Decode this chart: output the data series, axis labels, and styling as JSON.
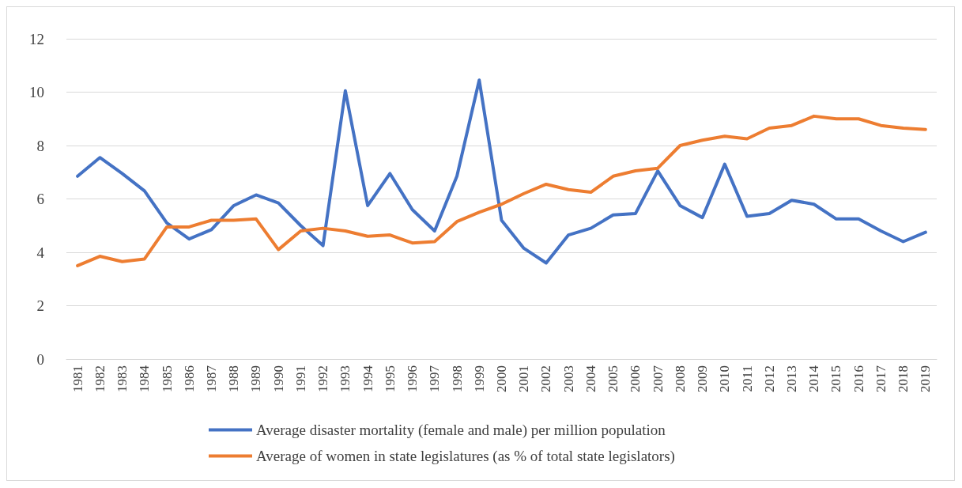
{
  "chart_data": {
    "type": "line",
    "categories": [
      "1981",
      "1982",
      "1983",
      "1984",
      "1985",
      "1986",
      "1987",
      "1988",
      "1989",
      "1990",
      "1991",
      "1992",
      "1993",
      "1994",
      "1995",
      "1996",
      "1997",
      "1998",
      "1999",
      "2000",
      "2001",
      "2002",
      "2003",
      "2004",
      "2005",
      "2006",
      "2007",
      "2008",
      "2009",
      "2010",
      "2011",
      "2012",
      "2013",
      "2014",
      "2015",
      "2016",
      "2017",
      "2018",
      "2019"
    ],
    "series": [
      {
        "name": "Average disaster mortality (female and male) per million population",
        "color": "#4472c4",
        "values": [
          6.85,
          7.55,
          6.95,
          6.3,
          5.1,
          4.5,
          4.85,
          5.75,
          6.15,
          5.85,
          5.0,
          4.25,
          10.05,
          5.75,
          6.95,
          5.6,
          4.8,
          6.85,
          10.45,
          5.2,
          4.15,
          3.6,
          4.65,
          4.9,
          5.4,
          5.45,
          7.05,
          5.75,
          5.3,
          7.3,
          5.35,
          5.45,
          5.95,
          5.8,
          5.25,
          5.25,
          4.8,
          4.4,
          4.75
        ]
      },
      {
        "name": "Average of women in state legislatures (as % of total state legislators)",
        "color": "#ed7d31",
        "values": [
          3.5,
          3.85,
          3.65,
          3.75,
          4.95,
          4.95,
          5.2,
          5.2,
          5.25,
          4.1,
          4.8,
          4.9,
          4.8,
          4.6,
          4.65,
          4.35,
          4.4,
          5.15,
          5.5,
          5.8,
          6.2,
          6.55,
          6.35,
          6.25,
          6.85,
          7.05,
          7.15,
          8.0,
          8.2,
          8.35,
          8.25,
          8.65,
          8.75,
          9.1,
          9.0,
          9.0,
          8.75,
          8.65,
          8.6
        ]
      }
    ],
    "ylim": [
      0,
      12
    ],
    "yticks": [
      0,
      2,
      4,
      6,
      8,
      10,
      12
    ],
    "grid": "y",
    "legend": "bottom",
    "marker": "none",
    "line_style": "solid"
  }
}
